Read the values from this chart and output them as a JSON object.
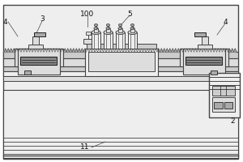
{
  "bg_color": "#ffffff",
  "lc": "#444444",
  "dc": "#222222",
  "gray1": "#cccccc",
  "gray2": "#dddddd",
  "gray3": "#eeeeee",
  "gray4": "#aaaaaa",
  "gray5": "#888888",
  "label_fs": 6.5,
  "label_color": "#111111"
}
